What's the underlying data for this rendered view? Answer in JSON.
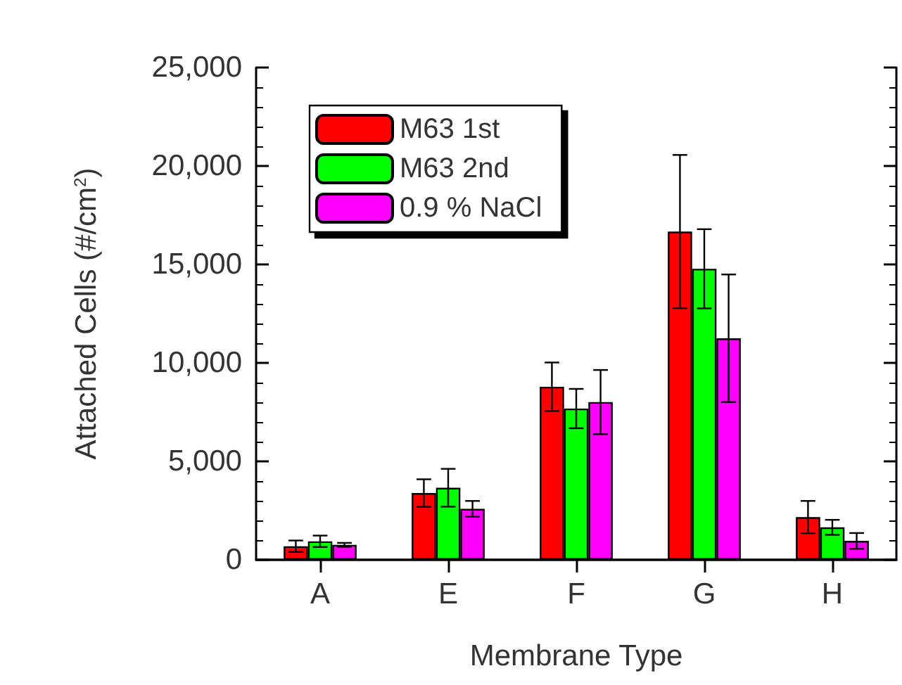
{
  "chart_data": {
    "type": "bar",
    "xlabel": "Membrane Type",
    "ylabel": "Attached Cells (#/cm$^{2}$)",
    "categories": [
      "A",
      "E",
      "F",
      "G",
      "H"
    ],
    "series": [
      {
        "name": "M63 1st",
        "color": "#ff0000",
        "values": [
          690,
          3390,
          8790,
          16670,
          2170
        ],
        "errors": [
          290,
          700,
          1230,
          3890,
          820
        ]
      },
      {
        "name": "M63 2nd",
        "color": "#00ff00",
        "values": [
          940,
          3660,
          7680,
          14780,
          1650
        ],
        "errors": [
          290,
          960,
          1000,
          2010,
          380
        ]
      },
      {
        "name": "0.9 % NaCl",
        "color": "#ff00ff",
        "values": [
          760,
          2590,
          8010,
          11250,
          960
        ],
        "errors": [
          100,
          400,
          1630,
          3240,
          400
        ]
      }
    ],
    "ylim": [
      0,
      25000
    ],
    "yticks": [
      {
        "value": 0,
        "label": "0"
      },
      {
        "value": 5000,
        "label": "5,000"
      },
      {
        "value": 10000,
        "label": "10,000"
      },
      {
        "value": 15000,
        "label": "15,000"
      },
      {
        "value": 20000,
        "label": "20,000"
      },
      {
        "value": 25000,
        "label": "25,000"
      }
    ],
    "legend": "top left"
  }
}
